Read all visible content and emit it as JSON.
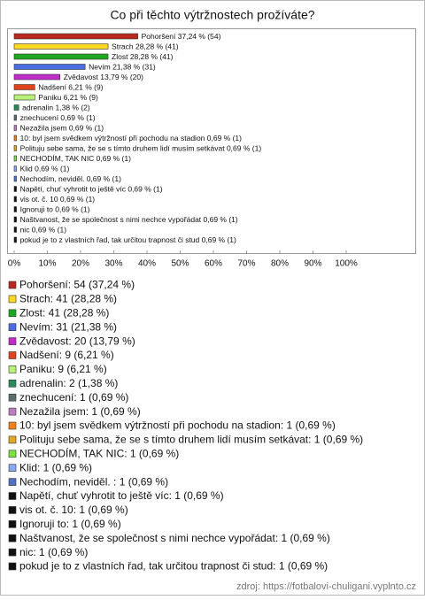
{
  "chart_data": {
    "type": "hbar",
    "title": "Co při těchto výtržnostech prožíváte?",
    "bar_labels": [
      "Pohoršení 37,24 % (54)",
      "Strach 28,28 % (41)",
      "Zlost 28,28 % (41)",
      "Nevím 21,38 % (31)",
      "Zvědavost 13,79 % (20)",
      "Nadšení 6,21 % (9)",
      "Paniku 6,21 % (9)",
      "adrenalin 1,38 % (2)",
      "znechucení 0,69 % (1)",
      "Nezažila jsem 0,69 % (1)",
      "10: byl jsem svědkem výtržností při pochodu na stadion 0,69 % (1)",
      "Polituju sebe sama, že se s tímto druhem lidí musím setkávat 0,69 % (1)",
      "NECHODÍM, TAK NIC 0,69 % (1)",
      "Klid 0,69 % (1)",
      "Nechodím, neviděl.  0,69 % (1)",
      "Napětí, chuť vyhrotit to ještě víc 0,69 % (1)",
      "vis ot. č. 10 0,69 % (1)",
      "Ignoruji to 0,69 % (1)",
      "Naštvanost, že  se  společnost s nimi nechce vypořádat 0,69 % (1)",
      "nic 0,69 % (1)",
      "pokud je to z vlastních řad, tak určitou trapnost či stud 0,69 % (1)"
    ],
    "legend_labels": [
      "Pohoršení: 54 (37,24 %)",
      "Strach: 41 (28,28 %)",
      "Zlost: 41 (28,28 %)",
      "Nevím: 31 (21,38 %)",
      "Zvědavost: 20 (13,79 %)",
      "Nadšení: 9 (6,21 %)",
      "Paniku: 9 (6,21 %)",
      "adrenalin: 2 (1,38 %)",
      "znechucení: 1 (0,69 %)",
      "Nezažila jsem: 1 (0,69 %)",
      "10: byl jsem svědkem výtržností při pochodu na stadion: 1 (0,69 %)",
      "Polituju sebe sama, že se s tímto druhem lidí musím setkávat: 1 (0,69 %)",
      "NECHODÍM, TAK NIC: 1 (0,69 %)",
      "Klid: 1 (0,69 %)",
      "Nechodím, neviděl. : 1 (0,69 %)",
      "Napětí, chuť vyhrotit to ještě víc: 1 (0,69 %)",
      "vis ot. č. 10: 1 (0,69 %)",
      "Ignoruji to: 1 (0,69 %)",
      "Naštvanost, že  se  společnost s nimi nechce vypořádat: 1 (0,69 %)",
      "nic: 1 (0,69 %)",
      "pokud je to z vlastních řad, tak určitou trapnost či stud: 1 (0,69 %)"
    ],
    "values": [
      37.24,
      28.28,
      28.28,
      21.38,
      13.79,
      6.21,
      6.21,
      1.38,
      0.69,
      0.69,
      0.69,
      0.69,
      0.69,
      0.69,
      0.69,
      0.69,
      0.69,
      0.69,
      0.69,
      0.69,
      0.69
    ],
    "counts": [
      54,
      41,
      41,
      31,
      20,
      9,
      9,
      2,
      1,
      1,
      1,
      1,
      1,
      1,
      1,
      1,
      1,
      1,
      1,
      1,
      1
    ],
    "colors": [
      "#b8281c",
      "#ffd820",
      "#1fa61f",
      "#4a6ee0",
      "#c02cc8",
      "#e0441c",
      "#b8f078",
      "#2a8a5a",
      "#5a6e6e",
      "#c07cc0",
      "#f0821c",
      "#e0a828",
      "#7ce040",
      "#88a8f0",
      "#5070c0",
      "#111111",
      "#111111",
      "#111111",
      "#111111",
      "#111111",
      "#111111"
    ],
    "xlim": [
      0,
      100
    ],
    "xticks": [
      {
        "value": 0,
        "label": "0%"
      },
      {
        "value": 10,
        "label": "10%"
      },
      {
        "value": 20,
        "label": "20%"
      },
      {
        "value": 30,
        "label": "30%"
      },
      {
        "value": 40,
        "label": "40%"
      },
      {
        "value": 50,
        "label": "50%"
      },
      {
        "value": 60,
        "label": "60%"
      },
      {
        "value": 70,
        "label": "70%"
      },
      {
        "value": 80,
        "label": "80%"
      },
      {
        "value": 90,
        "label": "90%"
      },
      {
        "value": 100,
        "label": "100%"
      }
    ],
    "source": "zdroj: https://fotbalovi-chuligani.vyplnto.cz"
  }
}
